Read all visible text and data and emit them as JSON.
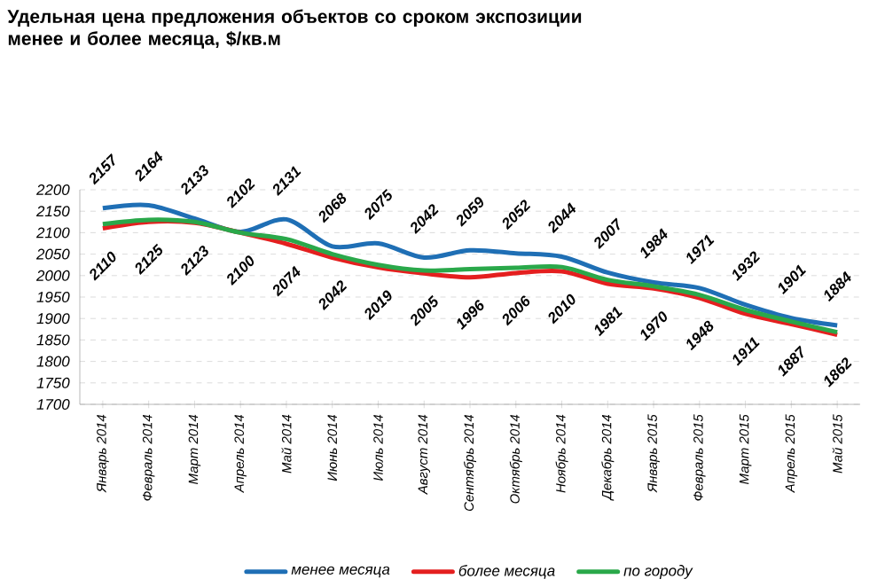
{
  "chart_data": {
    "type": "line",
    "title": "Удельная цена предложения  объектов со сроком экспозиции менее и более месяца, $/кв.м",
    "categories": [
      "Январь 2014",
      "Февраль 2014",
      "Март 2014",
      "Апрель 2014",
      "Май 2014",
      "Июнь 2014",
      "Июль 2014",
      "Август 2014",
      "Сентябрь 2014",
      "Октябрь 2014",
      "Ноябрь 2014",
      "Декабрь 2014",
      "Январь 2015",
      "Февраль 2015",
      "Март 2015",
      "Апрель 2015",
      "Май 2015"
    ],
    "ylim": [
      1700,
      2200
    ],
    "yticks": [
      1700,
      1750,
      1800,
      1850,
      1900,
      1950,
      2000,
      2050,
      2100,
      2150,
      2200
    ],
    "grid": "y",
    "legend": "bottom",
    "series": [
      {
        "name": "менее месяца",
        "color": "#1f6fb5",
        "values": [
          2157,
          2164,
          2133,
          2102,
          2131,
          2068,
          2075,
          2042,
          2059,
          2052,
          2044,
          2007,
          1984,
          1971,
          1932,
          1901,
          1884
        ],
        "value_labels": [
          "2157",
          "2164",
          "2133",
          "2102",
          "2131",
          "2068",
          "2075",
          "2042",
          "2059",
          "2052",
          "2044",
          "2007",
          "1984",
          "1971",
          "1932",
          "1901",
          "1884"
        ]
      },
      {
        "name": "более месяца",
        "color": "#e41f1f",
        "values": [
          2110,
          2125,
          2123,
          2100,
          2074,
          2042,
          2019,
          2005,
          1996,
          2006,
          2010,
          1981,
          1970,
          1948,
          1911,
          1887,
          1862
        ],
        "value_labels": [
          "2110",
          "2125",
          "2123",
          "2100",
          "2074",
          "2042",
          "2019",
          "2005",
          "1996",
          "2006",
          "2010",
          "1981",
          "1970",
          "1948",
          "1911",
          "1887",
          "1862"
        ]
      },
      {
        "name": "по городу",
        "color": "#2aa84a",
        "values": [
          2120,
          2130,
          2125,
          2100,
          2085,
          2050,
          2025,
          2012,
          2015,
          2018,
          2020,
          1990,
          1975,
          1955,
          1920,
          1893,
          1868
        ]
      }
    ]
  }
}
